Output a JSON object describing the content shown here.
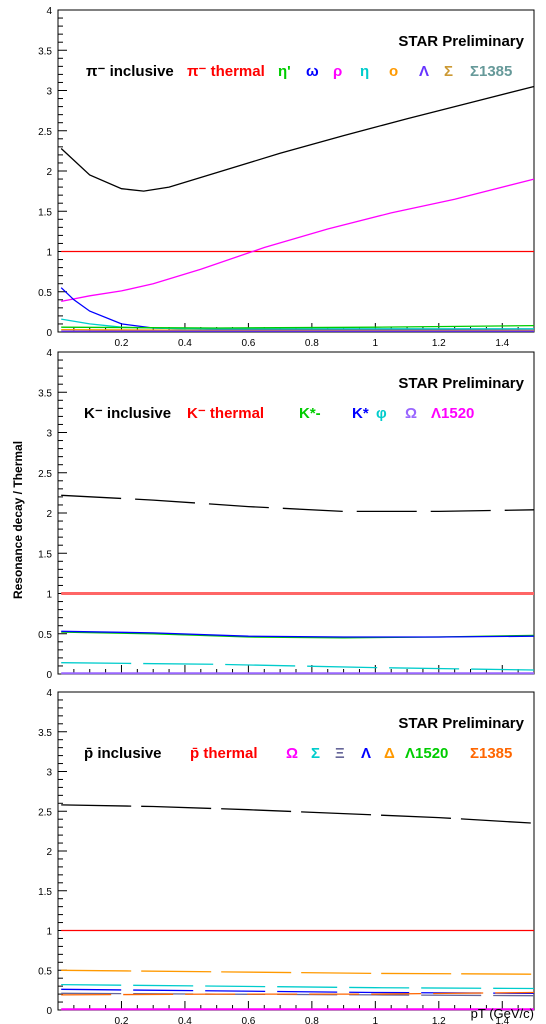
{
  "chart_data": [
    {
      "type": "line",
      "annotation": "STAR Preliminary",
      "xlim": [
        0,
        1.5
      ],
      "ylim": [
        0,
        4
      ],
      "yticks": [
        "0",
        "0.5",
        "1",
        "1.5",
        "2",
        "2.5",
        "3",
        "3.5",
        "4"
      ],
      "xticks": [
        "0.2",
        "0.4",
        "0.6",
        "0.8",
        "1",
        "1.2",
        "1.4"
      ],
      "legend_position": "top",
      "legend": [
        {
          "text": "π⁻ inclusive",
          "color": "#000000"
        },
        {
          "text": "π⁻ thermal",
          "color": "#ff0000"
        },
        {
          "text": "η'",
          "color": "#00cc00"
        },
        {
          "text": "ω",
          "color": "#0000ff"
        },
        {
          "text": "ρ",
          "color": "#ff00ff"
        },
        {
          "text": "η",
          "color": "#00cccc"
        },
        {
          "text": "o",
          "color": "#ff9900"
        },
        {
          "text": "Λ",
          "color": "#6633ff"
        },
        {
          "text": "Σ",
          "color": "#cc9933"
        },
        {
          "text": "Σ1385",
          "color": "#669999"
        }
      ],
      "series": [
        {
          "color": "#000000",
          "x": [
            0.01,
            0.1,
            0.2,
            0.27,
            0.35,
            0.5,
            0.7,
            0.9,
            1.1,
            1.3,
            1.5
          ],
          "y": [
            2.28,
            1.95,
            1.78,
            1.75,
            1.8,
            1.98,
            2.22,
            2.44,
            2.65,
            2.85,
            3.05
          ]
        },
        {
          "color": "#ff0000",
          "x": [
            0.01,
            1.5
          ],
          "y": [
            1.0,
            1.0
          ]
        },
        {
          "color": "#ff00ff",
          "x": [
            0.01,
            0.1,
            0.2,
            0.3,
            0.45,
            0.65,
            0.85,
            1.05,
            1.25,
            1.5
          ],
          "y": [
            0.38,
            0.45,
            0.51,
            0.6,
            0.78,
            1.05,
            1.28,
            1.48,
            1.65,
            1.9
          ]
        },
        {
          "color": "#0000ff",
          "x": [
            0.01,
            0.05,
            0.1,
            0.2,
            0.3,
            0.5,
            1.5
          ],
          "y": [
            0.55,
            0.4,
            0.26,
            0.1,
            0.05,
            0.03,
            0.02
          ]
        },
        {
          "color": "#00cccc",
          "x": [
            0.01,
            0.1,
            0.2,
            0.4,
            0.7,
            1.5
          ],
          "y": [
            0.16,
            0.1,
            0.06,
            0.04,
            0.04,
            0.04
          ]
        },
        {
          "color": "#00cc00",
          "x": [
            0.01,
            0.5,
            1.0,
            1.5
          ],
          "y": [
            0.06,
            0.05,
            0.06,
            0.08
          ]
        },
        {
          "color": "#ff9900",
          "x": [
            0.01,
            0.5,
            1.5
          ],
          "y": [
            0.03,
            0.02,
            0.02
          ]
        },
        {
          "color": "#6633ff",
          "x": [
            0.01,
            1.5
          ],
          "y": [
            0.01,
            0.01
          ]
        }
      ]
    },
    {
      "type": "line",
      "annotation": "STAR Preliminary",
      "xlim": [
        0,
        1.5
      ],
      "ylim": [
        0,
        4
      ],
      "yticks": [
        "0",
        "0.5",
        "1",
        "1.5",
        "2",
        "2.5",
        "3",
        "3.5",
        "4"
      ],
      "xticks": [],
      "legend_position": "top",
      "legend": [
        {
          "text": "K⁻ inclusive",
          "color": "#000000"
        },
        {
          "text": "K⁻ thermal",
          "color": "#ff0000"
        },
        {
          "text": "K*-",
          "color": "#00cc00"
        },
        {
          "text": "K*",
          "color": "#0000ff"
        },
        {
          "text": "φ",
          "color": "#00cccc"
        },
        {
          "text": "Ω",
          "color": "#9966ff"
        },
        {
          "text": "Λ1520",
          "color": "#ff00ff"
        }
      ],
      "series": [
        {
          "color": "#000000",
          "dash": "60 14",
          "x": [
            0.01,
            0.3,
            0.6,
            0.9,
            1.2,
            1.5
          ],
          "y": [
            2.22,
            2.16,
            2.08,
            2.02,
            2.02,
            2.04
          ]
        },
        {
          "color": "#ff6666",
          "width": 3,
          "x": [
            0.01,
            1.5
          ],
          "y": [
            1.0,
            1.0
          ]
        },
        {
          "color": "#00cc00",
          "x": [
            0.01,
            0.3,
            0.6,
            0.9,
            1.2,
            1.5
          ],
          "y": [
            0.52,
            0.5,
            0.46,
            0.45,
            0.46,
            0.48
          ]
        },
        {
          "color": "#0000ff",
          "x": [
            0.01,
            0.3,
            0.6,
            0.9,
            1.2,
            1.5
          ],
          "y": [
            0.53,
            0.51,
            0.47,
            0.46,
            0.46,
            0.47
          ]
        },
        {
          "color": "#00cccc",
          "dash": "70 12",
          "x": [
            0.01,
            0.5,
            1.0,
            1.5
          ],
          "y": [
            0.14,
            0.12,
            0.08,
            0.05
          ]
        },
        {
          "color": "#9966ff",
          "width": 2,
          "x": [
            0.01,
            1.5
          ],
          "y": [
            0.01,
            0.01
          ]
        }
      ]
    },
    {
      "type": "line",
      "annotation": "STAR Preliminary",
      "xlim": [
        0,
        1.5
      ],
      "ylim": [
        0,
        4
      ],
      "yticks": [
        "0",
        "0.5",
        "1",
        "1.5",
        "2",
        "2.5",
        "3",
        "3.5",
        "4"
      ],
      "xticks": [
        "0.2",
        "0.4",
        "0.6",
        "0.8",
        "1",
        "1.2",
        "1.4"
      ],
      "legend_position": "top",
      "legend": [
        {
          "text": "p̄ inclusive",
          "color": "#000000"
        },
        {
          "text": "p̄ thermal",
          "color": "#ff0000"
        },
        {
          "text": "Ω",
          "color": "#ff00ff"
        },
        {
          "text": "Σ",
          "color": "#00cccc"
        },
        {
          "text": "Ξ",
          "color": "#666699"
        },
        {
          "text": "Λ",
          "color": "#0000ff"
        },
        {
          "text": "Δ",
          "color": "#ff9900"
        },
        {
          "text": "Λ1520",
          "color": "#00cc00"
        },
        {
          "text": "Σ1385",
          "color": "#ff6600"
        }
      ],
      "series": [
        {
          "color": "#000000",
          "dash": "70 10",
          "x": [
            0.01,
            0.3,
            0.6,
            0.9,
            1.2,
            1.5
          ],
          "y": [
            2.58,
            2.56,
            2.52,
            2.47,
            2.42,
            2.35
          ]
        },
        {
          "color": "#ff0000",
          "x": [
            0.01,
            1.5
          ],
          "y": [
            1.0,
            1.0
          ]
        },
        {
          "color": "#ff9900",
          "dash": "70 10",
          "x": [
            0.01,
            0.5,
            1.0,
            1.5
          ],
          "y": [
            0.5,
            0.48,
            0.46,
            0.45
          ]
        },
        {
          "color": "#00cccc",
          "dash": "60 12",
          "x": [
            0.01,
            0.5,
            1.0,
            1.5
          ],
          "y": [
            0.32,
            0.3,
            0.28,
            0.27
          ]
        },
        {
          "color": "#0000ff",
          "dash": "60 12",
          "x": [
            0.01,
            0.5,
            1.0,
            1.5
          ],
          "y": [
            0.26,
            0.24,
            0.22,
            0.21
          ]
        },
        {
          "color": "#666699",
          "dash": "60 12",
          "x": [
            0.01,
            0.5,
            1.0,
            1.5
          ],
          "y": [
            0.21,
            0.2,
            0.19,
            0.18
          ]
        },
        {
          "color": "#ff6600",
          "dash": "50 12",
          "x": [
            0.01,
            0.5,
            1.0,
            1.5
          ],
          "y": [
            0.19,
            0.2,
            0.2,
            0.22
          ]
        },
        {
          "color": "#ff00ff",
          "width": 2,
          "x": [
            0.01,
            1.5
          ],
          "y": [
            0.01,
            0.01
          ]
        }
      ]
    }
  ],
  "shared_ylabel": "Resonance decay / Thermal",
  "shared_xlabel": "pT (GeV/c)"
}
